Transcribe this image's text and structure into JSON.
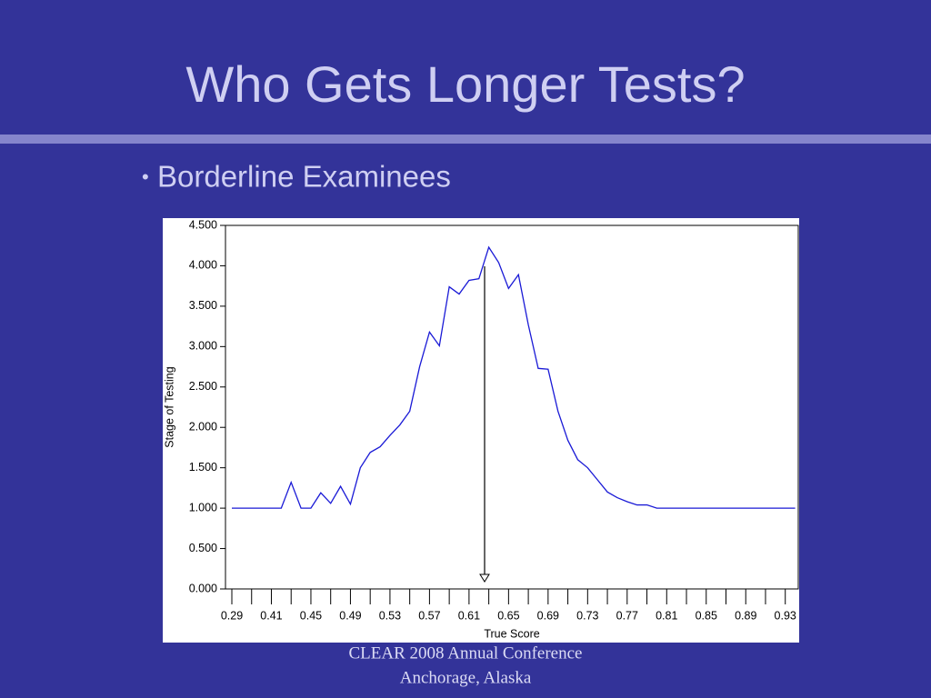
{
  "slide": {
    "title": "Who Gets Longer Tests?",
    "bullet": "Borderline Examinees",
    "footer": [
      "CLEAR 2008 Annual Conference",
      "Anchorage, Alaska"
    ]
  },
  "chart_data": {
    "type": "line",
    "x_label": "True Score",
    "y_label": "Stage of Testing",
    "categories": [
      "0.29",
      null,
      null,
      null,
      "0.41",
      null,
      null,
      null,
      "0.45",
      null,
      null,
      null,
      "0.49",
      null,
      null,
      null,
      "0.53",
      null,
      null,
      null,
      "0.57",
      null,
      null,
      null,
      "0.61",
      null,
      null,
      null,
      "0.65",
      null,
      null,
      null,
      "0.69",
      null,
      null,
      null,
      "0.73",
      null,
      null,
      null,
      "0.77",
      null,
      null,
      null,
      "0.81",
      null,
      null,
      null,
      "0.85",
      null,
      null,
      null,
      "0.89",
      null,
      null,
      null,
      "0.93",
      null
    ],
    "series": [
      {
        "name": "Stage of Testing",
        "color": "#1a1ad6",
        "values": [
          1.0,
          1.0,
          1.0,
          1.0,
          1.0,
          1.0,
          1.32,
          1.0,
          1.0,
          1.19,
          1.06,
          1.27,
          1.05,
          1.5,
          1.69,
          1.76,
          1.9,
          2.03,
          2.2,
          2.75,
          3.18,
          3.01,
          3.74,
          3.65,
          3.82,
          3.84,
          4.23,
          4.04,
          3.72,
          3.89,
          3.27,
          2.73,
          2.72,
          2.2,
          1.84,
          1.6,
          1.5,
          1.35,
          1.2,
          1.13,
          1.08,
          1.04,
          1.04,
          1.0,
          1.0,
          1.0,
          1.0,
          1.0,
          1.0,
          1.0,
          1.0,
          1.0,
          1.0,
          1.0,
          1.0,
          1.0,
          1.0,
          1.0
        ]
      }
    ],
    "ylim": [
      0,
      4.5
    ],
    "yticks": [
      {
        "value": 0,
        "label": "0.000"
      },
      {
        "value": 0.5,
        "label": "0.500"
      },
      {
        "value": 1,
        "label": "1.000"
      },
      {
        "value": 1.5,
        "label": "1.500"
      },
      {
        "value": 2,
        "label": "2.000"
      },
      {
        "value": 2.5,
        "label": "2.500"
      },
      {
        "value": 3,
        "label": "3.000"
      },
      {
        "value": 3.5,
        "label": "3.500"
      },
      {
        "value": 4,
        "label": "4.000"
      },
      {
        "value": 4.5,
        "label": "4.500"
      }
    ],
    "grid": false
  }
}
